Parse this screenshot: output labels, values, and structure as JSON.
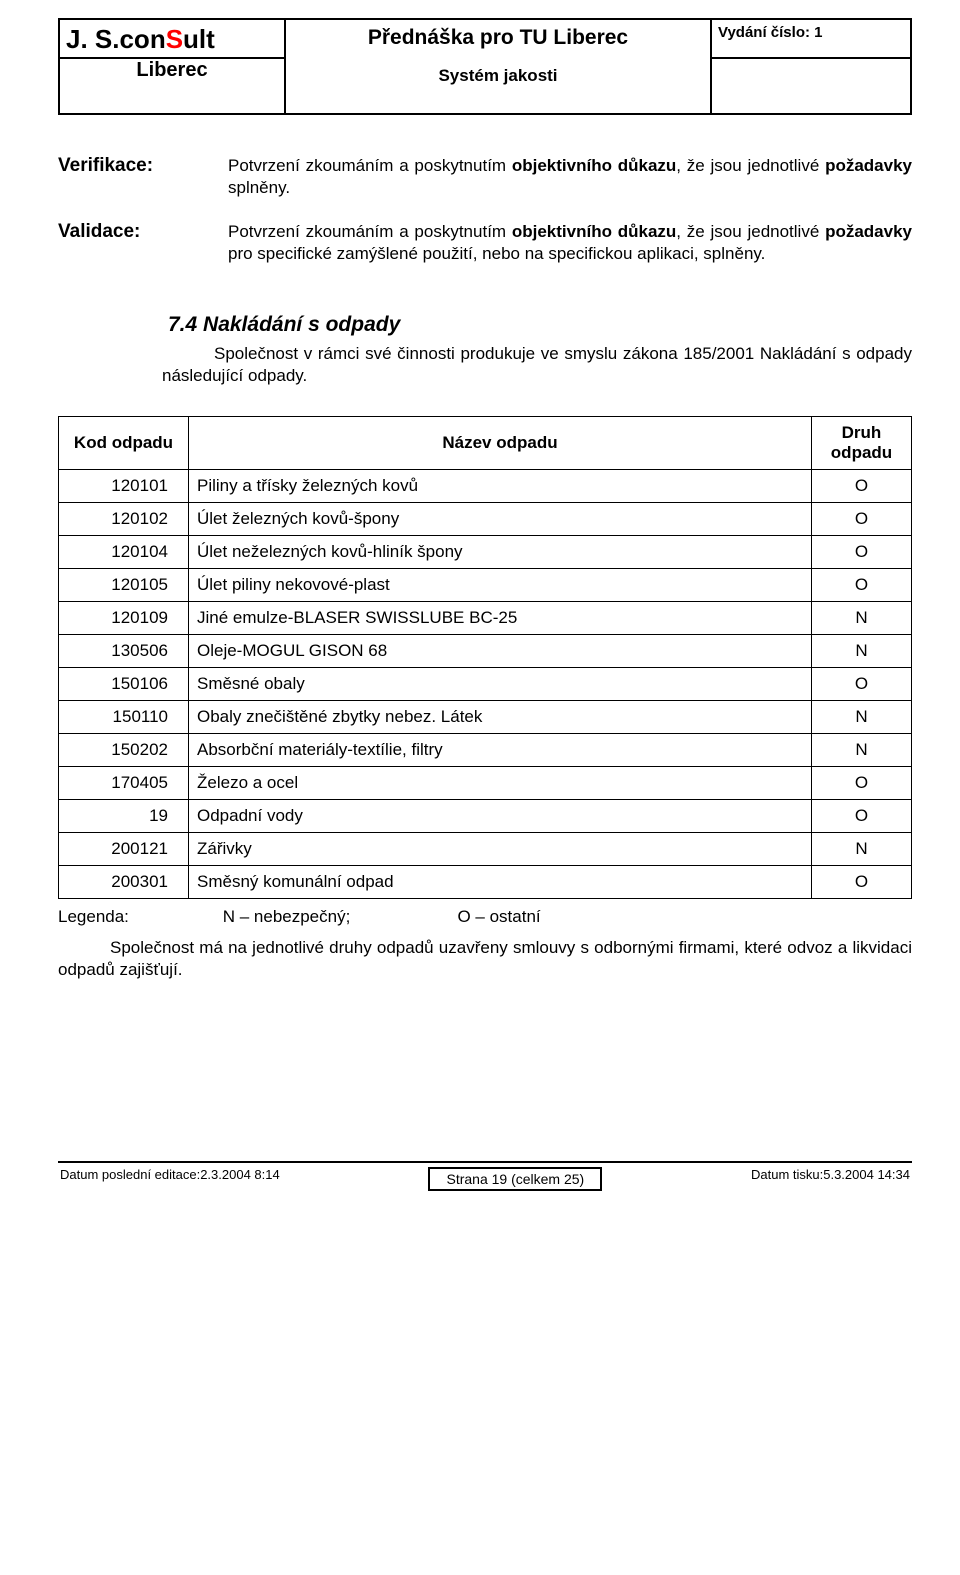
{
  "header": {
    "brand_parts": {
      "a": "J. S.con",
      "b": "S",
      "c": "ult"
    },
    "brand_sub": "Liberec",
    "title": "Přednáška pro TU Liberec",
    "subtitle": "Systém jakosti",
    "issue": "Vydání číslo: 1"
  },
  "defs": [
    {
      "term": "Verifikace:",
      "text_pre": "Potvrzení zkoumáním a poskytnutím ",
      "text_bold": "objektivního důkazu",
      "text_mid": ", že jsou jednotlivé  ",
      "text_bold2": "požadavky",
      "text_post": " splněny."
    },
    {
      "term": "Validace:",
      "text_pre": "Potvrzení zkoumáním a poskytnutím ",
      "text_bold": "objektivního důkazu",
      "text_mid": ", že jsou jednotlivé  ",
      "text_bold2": "požadavky",
      "text_post": " pro specifické zamýšlené použití, nebo na specifickou aplikaci, splněny."
    }
  ],
  "section": {
    "heading": "7.4 Nakládání s odpady",
    "body": "Společnost v rámci své činnosti produkuje ve smyslu zákona 185/2001 Nakládání s odpady následující odpady."
  },
  "table": {
    "cols": [
      "Kod odpadu",
      "Název odpadu",
      "Druh odpadu"
    ],
    "rows": [
      [
        "120101",
        "Piliny a třísky železných kovů",
        "O"
      ],
      [
        "120102",
        "Úlet železných kovů-špony",
        "O"
      ],
      [
        "120104",
        "Úlet neželezných kovů-hliník špony",
        "O"
      ],
      [
        "120105",
        "Úlet piliny nekovové-plast",
        "O"
      ],
      [
        "120109",
        "Jiné emulze-BLASER SWISSLUBE BC-25",
        "N"
      ],
      [
        "130506",
        "Oleje-MOGUL GISON 68",
        "N"
      ],
      [
        "150106",
        "Směsné obaly",
        "O"
      ],
      [
        "150110",
        "Obaly znečištěné zbytky nebez. Látek",
        "N"
      ],
      [
        "150202",
        "Absorbční materiály-textílie, filtry",
        "N"
      ],
      [
        "170405",
        "Železo a ocel",
        "O"
      ],
      [
        "19",
        "Odpadní vody",
        "O"
      ],
      [
        "200121",
        "Zářivky",
        "N"
      ],
      [
        "200301",
        "Směsný komunální odpad",
        "O"
      ]
    ]
  },
  "legend": {
    "label": "Legenda:",
    "n": "N – nebezpečný;",
    "o": "O – ostatní"
  },
  "closing": "Společnost má na jednotlivé druhy odpadů uzavřeny smlouvy s odbornými firmami, které odvoz a likvidaci odpadů zajišťují.",
  "footer": {
    "left": "Datum poslední editace:2.3.2004 8:14",
    "mid": "Strana 19 (celkem 25)",
    "right": "Datum tisku:5.3.2004 14:34"
  }
}
